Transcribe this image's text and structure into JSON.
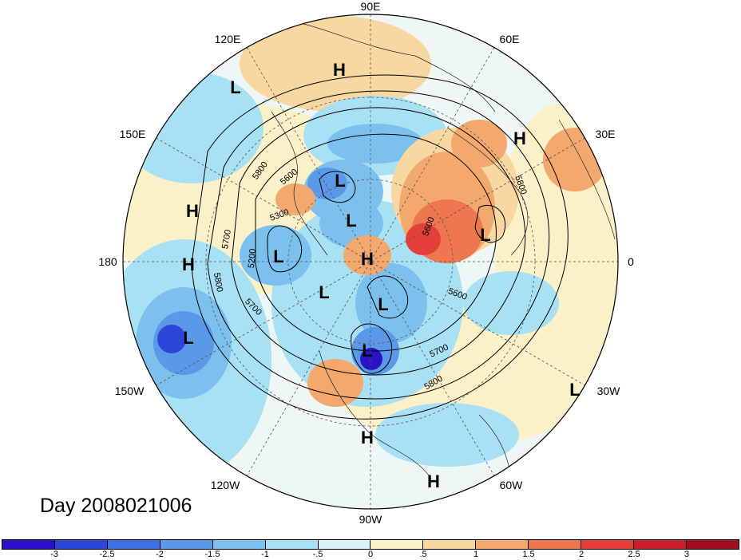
{
  "title": "Day 2008021006",
  "longitude_labels": [
    "90E",
    "60E",
    "30E",
    "0",
    "30W",
    "60W",
    "90W",
    "120W",
    "150W",
    "180",
    "150E",
    "120E"
  ],
  "pressure_centers": [
    {
      "label": "L",
      "id": "l1"
    },
    {
      "label": "H",
      "id": "h1"
    },
    {
      "label": "H",
      "id": "h2"
    },
    {
      "label": "L",
      "id": "l2"
    },
    {
      "label": "H",
      "id": "h3"
    },
    {
      "label": "L",
      "id": "l3"
    },
    {
      "label": "H",
      "id": "h4"
    },
    {
      "label": "L",
      "id": "l4"
    },
    {
      "label": "H",
      "id": "h5"
    },
    {
      "label": "L",
      "id": "l5"
    },
    {
      "label": "L",
      "id": "l6"
    },
    {
      "label": "L",
      "id": "l7"
    },
    {
      "label": "L",
      "id": "l8"
    },
    {
      "label": "L",
      "id": "l9"
    },
    {
      "label": "L",
      "id": "l10"
    },
    {
      "label": "H",
      "id": "h6"
    },
    {
      "label": "H",
      "id": "h7"
    }
  ],
  "contour_labels": [
    "5600",
    "5800",
    "5800",
    "5300",
    "5700",
    "5200",
    "5800",
    "5700",
    "5600",
    "5600",
    "5700",
    "5800"
  ],
  "colorbar": {
    "ticks": [
      "-3",
      "-2.5",
      "-2",
      "-1.5",
      "-1",
      "-.5",
      "0",
      ".5",
      "1",
      "1.5",
      "2",
      "2.5",
      "3"
    ],
    "colors": [
      "#2a12c8",
      "#2c46d8",
      "#3f72e0",
      "#5a98e8",
      "#7cc0ee",
      "#a8e0f4",
      "#d8f2f8",
      "#fbf1c8",
      "#f8d7a0",
      "#f3a86e",
      "#ee7750",
      "#e4403a",
      "#c81e2c",
      "#a00e20"
    ]
  }
}
